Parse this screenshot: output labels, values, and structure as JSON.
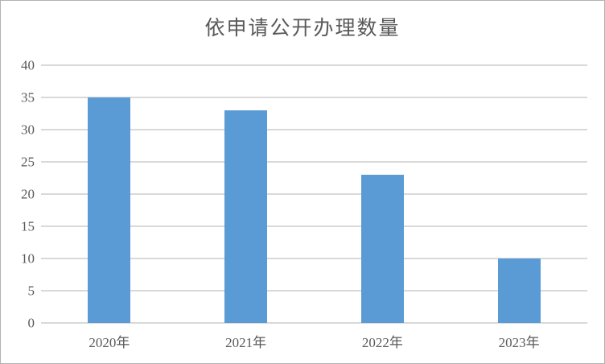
{
  "chart_data": {
    "type": "bar",
    "title": "依申请公开办理数量",
    "categories": [
      "2020年",
      "2021年",
      "2022年",
      "2023年"
    ],
    "values": [
      35,
      33,
      23,
      10
    ],
    "xlabel": "",
    "ylabel": "",
    "ylim": [
      0,
      40
    ],
    "ytick_step": 5,
    "ytick_labels": [
      "0",
      "5",
      "10",
      "15",
      "20",
      "25",
      "30",
      "35",
      "40"
    ],
    "grid": true,
    "legend_position": "none",
    "colors": {
      "bar": "#5B9BD5",
      "gridline": "#D9D9D9",
      "axis_text": "#595959",
      "title_text": "#595959",
      "background": "#FFFFFF",
      "border": "#B2B2B2"
    }
  }
}
